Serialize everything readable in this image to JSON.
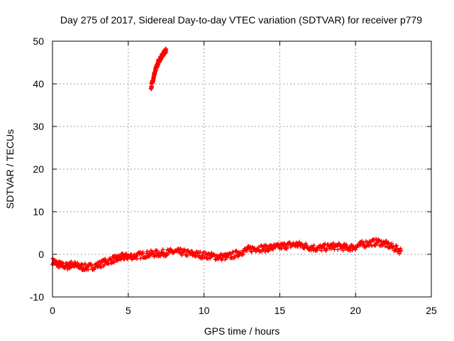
{
  "chart_data": {
    "type": "scatter",
    "title": "Day 275 of 2017, Sidereal Day-to-day VTEC variation (SDTVAR) for receiver p779",
    "xlabel": "GPS time / hours",
    "ylabel": "SDTVAR / TECUs",
    "xlim": [
      0,
      25
    ],
    "ylim": [
      -10,
      50
    ],
    "xticks": [
      0,
      5,
      10,
      15,
      20,
      25
    ],
    "yticks": [
      -10,
      0,
      10,
      20,
      30,
      40,
      50
    ],
    "xtick_labels": [
      "0",
      "5",
      "10",
      "15",
      "20",
      "25"
    ],
    "ytick_labels": [
      "-10",
      "0",
      "10",
      "20",
      "30",
      "40",
      "50"
    ],
    "grid": true,
    "series": [
      {
        "name": "SDTVAR",
        "color": "#ff0000",
        "marker": "plus",
        "segments": [
          {
            "name": "main-trace",
            "spread": 0.8,
            "points": [
              [
                0.0,
                -1.6
              ],
              [
                0.3,
                -2.2
              ],
              [
                0.6,
                -2.6
              ],
              [
                1.0,
                -2.8
              ],
              [
                1.3,
                -2.3
              ],
              [
                1.6,
                -2.7
              ],
              [
                2.0,
                -3.0
              ],
              [
                2.5,
                -3.0
              ],
              [
                3.0,
                -2.5
              ],
              [
                3.5,
                -1.8
              ],
              [
                4.0,
                -1.2
              ],
              [
                4.3,
                -1.0
              ],
              [
                4.6,
                -0.6
              ],
              [
                5.0,
                -0.5
              ],
              [
                5.5,
                -0.4
              ],
              [
                6.0,
                -0.1
              ],
              [
                6.5,
                0.1
              ],
              [
                7.0,
                0.2
              ],
              [
                7.5,
                0.4
              ],
              [
                8.0,
                0.6
              ],
              [
                8.5,
                0.5
              ],
              [
                9.0,
                0.2
              ],
              [
                9.5,
                0.0
              ],
              [
                10.0,
                -0.2
              ],
              [
                10.5,
                -0.4
              ],
              [
                11.0,
                -0.6
              ],
              [
                11.5,
                -0.6
              ],
              [
                12.0,
                -0.1
              ],
              [
                12.5,
                0.6
              ],
              [
                13.0,
                1.2
              ],
              [
                13.5,
                1.5
              ],
              [
                14.0,
                1.4
              ],
              [
                14.5,
                1.6
              ],
              [
                15.0,
                1.8
              ],
              [
                15.5,
                2.1
              ],
              [
                16.0,
                2.3
              ],
              [
                16.5,
                2.1
              ],
              [
                17.0,
                1.7
              ],
              [
                17.5,
                1.4
              ],
              [
                18.0,
                1.6
              ],
              [
                18.5,
                1.9
              ],
              [
                19.0,
                1.8
              ],
              [
                19.5,
                1.5
              ],
              [
                20.0,
                1.8
              ],
              [
                20.5,
                2.4
              ],
              [
                21.0,
                2.7
              ],
              [
                21.5,
                2.9
              ],
              [
                22.0,
                2.4
              ],
              [
                22.5,
                1.6
              ],
              [
                23.0,
                0.8
              ]
            ]
          },
          {
            "name": "outlier-trace",
            "spread": 0.5,
            "points": [
              [
                6.5,
                39.0
              ],
              [
                6.6,
                40.5
              ],
              [
                6.7,
                42.0
              ],
              [
                6.8,
                43.2
              ],
              [
                6.9,
                44.3
              ],
              [
                7.0,
                45.2
              ],
              [
                7.1,
                45.9
              ],
              [
                7.2,
                46.5
              ],
              [
                7.3,
                47.0
              ],
              [
                7.4,
                47.5
              ],
              [
                7.5,
                47.8
              ]
            ]
          }
        ]
      }
    ]
  }
}
